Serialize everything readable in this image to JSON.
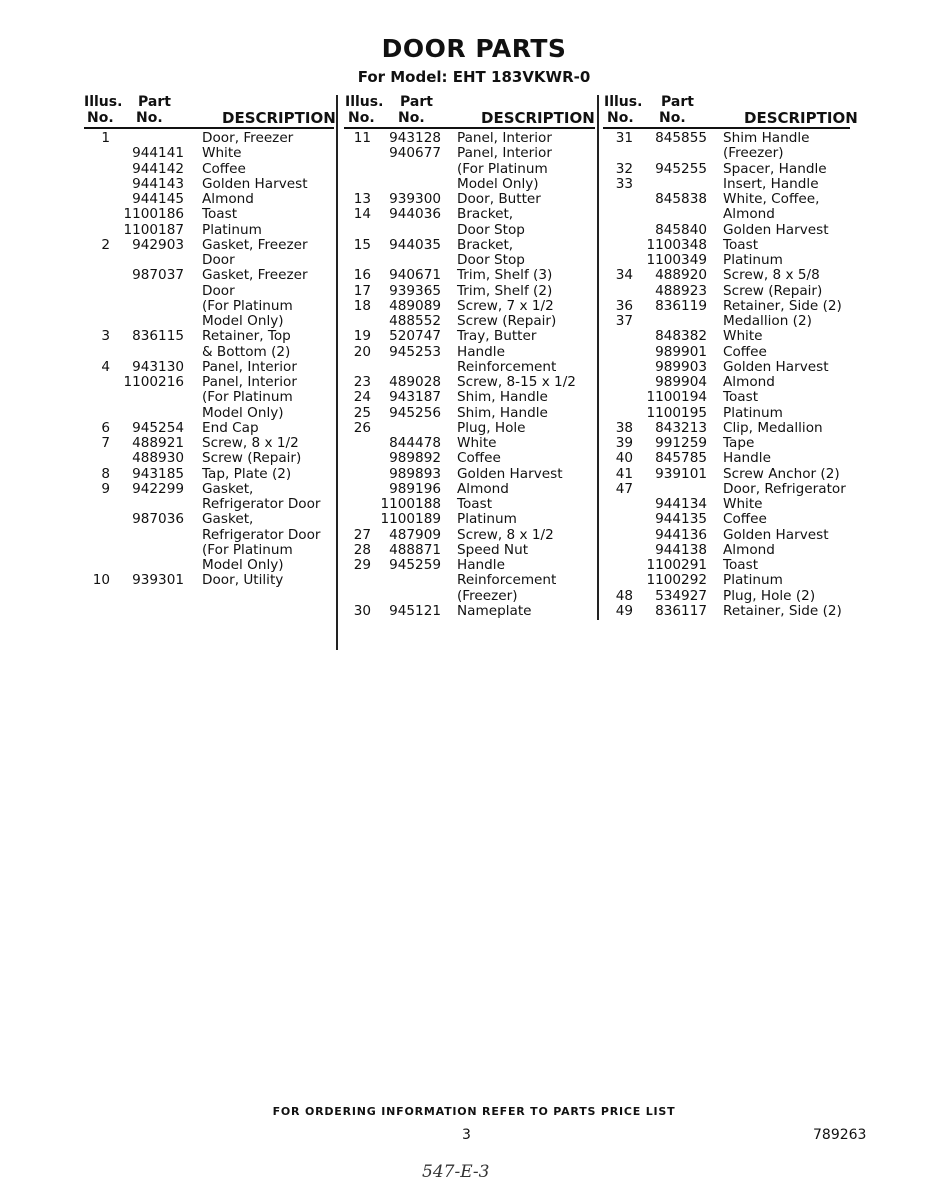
{
  "title": "DOOR PARTS",
  "subtitle": "For Model: EHT 183VKWR-0",
  "headers": {
    "illus1": "Illus.",
    "illus2": "No.",
    "part1": "Part",
    "part2": "No.",
    "description": "DESCRIPTION"
  },
  "columns": [
    [
      [
        "1",
        "",
        "Door, Freezer"
      ],
      [
        "",
        "944141",
        "White"
      ],
      [
        "",
        "944142",
        "Coffee"
      ],
      [
        "",
        "944143",
        "Golden Harvest"
      ],
      [
        "",
        "944145",
        "Almond"
      ],
      [
        "",
        "1100186",
        "Toast"
      ],
      [
        "",
        "1100187",
        "Platinum"
      ],
      [
        "2",
        "942903",
        "Gasket, Freezer"
      ],
      [
        "",
        "",
        "Door"
      ],
      [
        "",
        "987037",
        "Gasket, Freezer"
      ],
      [
        "",
        "",
        "Door"
      ],
      [
        "",
        "",
        "(For Platinum"
      ],
      [
        "",
        "",
        "Model Only)"
      ],
      [
        "3",
        "836115",
        "Retainer, Top"
      ],
      [
        "",
        "",
        "& Bottom (2)"
      ],
      [
        "4",
        "943130",
        "Panel, Interior"
      ],
      [
        "",
        "1100216",
        "Panel, Interior"
      ],
      [
        "",
        "",
        "(For Platinum"
      ],
      [
        "",
        "",
        "Model Only)"
      ],
      [
        "6",
        "945254",
        "End Cap"
      ],
      [
        "7",
        "488921",
        "Screw, 8 x 1/2"
      ],
      [
        "",
        "488930",
        "Screw (Repair)"
      ],
      [
        "8",
        "943185",
        "Tap, Plate (2)"
      ],
      [
        "9",
        "942299",
        "Gasket,"
      ],
      [
        "",
        "",
        "Refrigerator Door"
      ],
      [
        "",
        "987036",
        "Gasket,"
      ],
      [
        "",
        "",
        "Refrigerator Door"
      ],
      [
        "",
        "",
        "(For Platinum"
      ],
      [
        "",
        "",
        "Model Only)"
      ],
      [
        "10",
        "939301",
        "Door, Utility"
      ]
    ],
    [
      [
        "11",
        "943128",
        "Panel, Interior"
      ],
      [
        "",
        "940677",
        "Panel, Interior"
      ],
      [
        "",
        "",
        "(For Platinum"
      ],
      [
        "",
        "",
        "Model Only)"
      ],
      [
        "13",
        "939300",
        "Door, Butter"
      ],
      [
        "14",
        "944036",
        "Bracket,"
      ],
      [
        "",
        "",
        "Door Stop"
      ],
      [
        "15",
        "944035",
        "Bracket,"
      ],
      [
        "",
        "",
        "Door Stop"
      ],
      [
        "16",
        "940671",
        "Trim, Shelf (3)"
      ],
      [
        "17",
        "939365",
        "Trim, Shelf (2)"
      ],
      [
        "18",
        "489089",
        "Screw, 7 x 1/2"
      ],
      [
        "",
        "488552",
        "Screw (Repair)"
      ],
      [
        "19",
        "520747",
        "Tray, Butter"
      ],
      [
        "20",
        "945253",
        "Handle"
      ],
      [
        "",
        "",
        "Reinforcement"
      ],
      [
        "23",
        "489028",
        "Screw, 8-15 x 1/2"
      ],
      [
        "24",
        "943187",
        "Shim, Handle"
      ],
      [
        "25",
        "945256",
        "Shim, Handle"
      ],
      [
        "26",
        "",
        "Plug, Hole"
      ],
      [
        "",
        "844478",
        "White"
      ],
      [
        "",
        "989892",
        "Coffee"
      ],
      [
        "",
        "989893",
        "Golden Harvest"
      ],
      [
        "",
        "989196",
        "Almond"
      ],
      [
        "",
        "1100188",
        "Toast"
      ],
      [
        "",
        "1100189",
        "Platinum"
      ],
      [
        "27",
        "487909",
        "Screw, 8 x 1/2"
      ],
      [
        "28",
        "488871",
        "Speed Nut"
      ],
      [
        "29",
        "945259",
        "Handle"
      ],
      [
        "",
        "",
        "Reinforcement"
      ],
      [
        "",
        "",
        "(Freezer)"
      ],
      [
        "30",
        "945121",
        "Nameplate"
      ]
    ],
    [
      [
        "31",
        "845855",
        "Shim Handle"
      ],
      [
        "",
        "",
        "(Freezer)"
      ],
      [
        "32",
        "945255",
        "Spacer, Handle"
      ],
      [
        "33",
        "",
        "Insert, Handle"
      ],
      [
        "",
        "845838",
        "White, Coffee,"
      ],
      [
        "",
        "",
        "Almond"
      ],
      [
        "",
        "845840",
        "Golden Harvest"
      ],
      [
        "",
        "1100348",
        "Toast"
      ],
      [
        "",
        "1100349",
        "Platinum"
      ],
      [
        "34",
        "488920",
        "Screw, 8 x 5/8"
      ],
      [
        "",
        "488923",
        "Screw (Repair)"
      ],
      [
        "36",
        "836119",
        "Retainer, Side (2)"
      ],
      [
        "37",
        "",
        "Medallion (2)"
      ],
      [
        "",
        "848382",
        "White"
      ],
      [
        "",
        "989901",
        "Coffee"
      ],
      [
        "",
        "989903",
        "Golden Harvest"
      ],
      [
        "",
        "989904",
        "Almond"
      ],
      [
        "",
        "1100194",
        "Toast"
      ],
      [
        "",
        "1100195",
        "Platinum"
      ],
      [
        "38",
        "843213",
        "Clip, Medallion"
      ],
      [
        "39",
        "991259",
        "Tape"
      ],
      [
        "40",
        "845785",
        "Handle"
      ],
      [
        "41",
        "939101",
        "Screw Anchor (2)"
      ],
      [
        "47",
        "",
        "Door, Refrigerator"
      ],
      [
        "",
        "944134",
        "White"
      ],
      [
        "",
        "944135",
        "Coffee"
      ],
      [
        "",
        "944136",
        "Golden Harvest"
      ],
      [
        "",
        "944138",
        "Almond"
      ],
      [
        "",
        "1100291",
        "Toast"
      ],
      [
        "",
        "1100292",
        "Platinum"
      ],
      [
        "48",
        "534927",
        "Plug, Hole (2)"
      ],
      [
        "49",
        "836117",
        "Retainer, Side (2)"
      ]
    ]
  ],
  "footer": {
    "ordering_note": "FOR ORDERING INFORMATION REFER TO PARTS PRICE LIST",
    "page_number": "3",
    "document_number": "789263",
    "handwritten_note": "547-E-3"
  }
}
